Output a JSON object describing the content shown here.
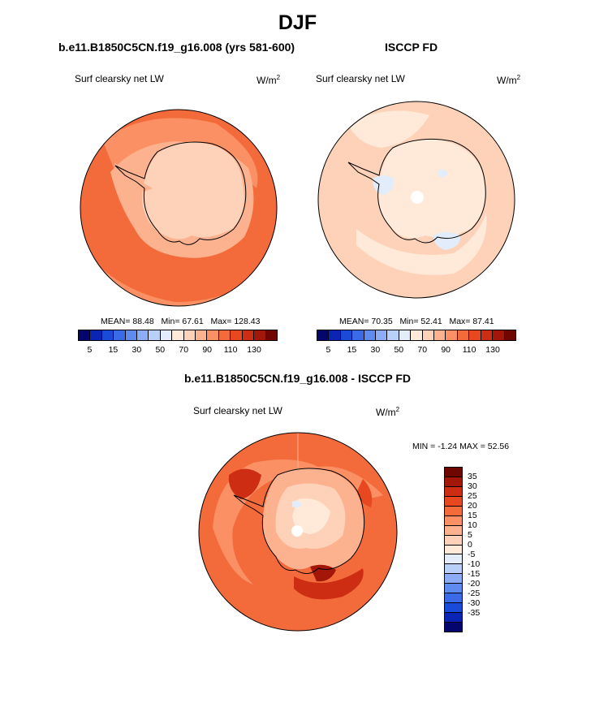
{
  "figure": {
    "title": "DJF",
    "panels": [
      {
        "title": "b.e11.B1850C5CN.f19_g16.008 (yrs 581-600)",
        "variable": "Surf clearsky net LW",
        "units": "W/m",
        "units_exp": "2",
        "stats": {
          "mean": "MEAN=  88.48",
          "min": "Min=  67.61",
          "max": "Max=  128.43"
        },
        "colorbar": {
          "colors": [
            "#05056e",
            "#0a24b4",
            "#1a4ad8",
            "#3a6ae8",
            "#5f8af0",
            "#8cacf5",
            "#b8cff8",
            "#e2ecfb",
            "#ffeada",
            "#fdd2b8",
            "#fcb28f",
            "#fa9064",
            "#f46b3b",
            "#e8481f",
            "#cd2d12",
            "#a31708",
            "#700600"
          ],
          "ticks": [
            "5",
            "15",
            "30",
            "50",
            "70",
            "90",
            "110",
            "130"
          ]
        }
      },
      {
        "title": "ISCCP FD",
        "variable": "Surf clearsky net LW",
        "units": "W/m",
        "units_exp": "2",
        "stats": {
          "mean": "MEAN=  70.35",
          "min": "Min=  52.41",
          "max": "Max=  87.41"
        },
        "colorbar": {
          "colors": [
            "#05056e",
            "#0a24b4",
            "#1a4ad8",
            "#3a6ae8",
            "#5f8af0",
            "#8cacf5",
            "#b8cff8",
            "#e2ecfb",
            "#ffeada",
            "#fdd2b8",
            "#fcb28f",
            "#fa9064",
            "#f46b3b",
            "#e8481f",
            "#cd2d12",
            "#a31708",
            "#700600"
          ],
          "ticks": [
            "5",
            "15",
            "30",
            "50",
            "70",
            "90",
            "110",
            "130"
          ]
        }
      },
      {
        "title": "b.e11.B1850C5CN.f19_g16.008 - ISCCP FD",
        "variable": "Surf clearsky net LW",
        "units": "W/m",
        "units_exp": "2",
        "stats": {
          "minmax": "MIN =  -1.24 MAX =  52.56"
        },
        "colorbar": {
          "colors": [
            "#700600",
            "#a31708",
            "#cd2d12",
            "#e8481f",
            "#f46b3b",
            "#fa9064",
            "#fcb28f",
            "#fdd2b8",
            "#ffeada",
            "#e2ecfb",
            "#b8cff8",
            "#8cacf5",
            "#5f8af0",
            "#3a6ae8",
            "#1a4ad8",
            "#0a24b4",
            "#05056e"
          ],
          "ticks": [
            "35",
            "30",
            "25",
            "20",
            "15",
            "10",
            "5",
            "0",
            "-5",
            "-10",
            "-15",
            "-20",
            "-25",
            "-30",
            "-35"
          ]
        }
      }
    ]
  }
}
